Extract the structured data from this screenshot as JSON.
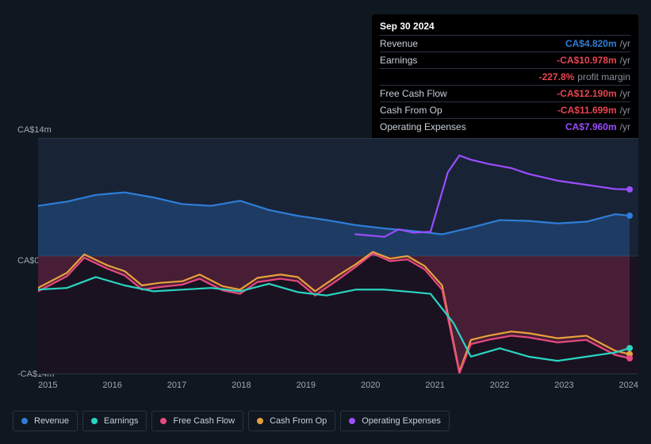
{
  "tooltip": {
    "date": "Sep 30 2024",
    "rows": [
      {
        "label": "Revenue",
        "value": "CA$4.820m",
        "unit": "/yr",
        "color": "#2e7dd7"
      },
      {
        "label": "Earnings",
        "value": "-CA$10.978m",
        "unit": "/yr",
        "color": "#e64552"
      },
      {
        "label": "",
        "value": "-227.8%",
        "unit": "profit margin",
        "color": "#e64552"
      },
      {
        "label": "Free Cash Flow",
        "value": "-CA$12.190m",
        "unit": "/yr",
        "color": "#e64552"
      },
      {
        "label": "Cash From Op",
        "value": "-CA$11.699m",
        "unit": "/yr",
        "color": "#e64552"
      },
      {
        "label": "Operating Expenses",
        "value": "CA$7.960m",
        "unit": "/yr",
        "color": "#9b4dff"
      }
    ]
  },
  "chart": {
    "type": "line",
    "ylim": [
      -14,
      14
    ],
    "ytick_labels": [
      "CA$14m",
      "CA$0",
      "-CA$14m"
    ],
    "x_labels": [
      "2015",
      "2016",
      "2017",
      "2018",
      "2019",
      "2020",
      "2021",
      "2022",
      "2023",
      "2024"
    ],
    "x_start_year": 2014.5,
    "x_end_year": 2024.9,
    "background_top": "#182336",
    "background_bottom": "#1a1220",
    "grid_color": "#2a3340",
    "line_width": 2.2,
    "end_dot_radius": 4,
    "series": [
      {
        "name": "Revenue",
        "color": "#2e7dd7",
        "fill": "rgba(46,125,215,0.28)",
        "fill_to": 0,
        "points": [
          [
            2014.5,
            6.0
          ],
          [
            2015.0,
            6.5
          ],
          [
            2015.5,
            7.3
          ],
          [
            2016.0,
            7.6
          ],
          [
            2016.5,
            7.0
          ],
          [
            2017.0,
            6.2
          ],
          [
            2017.5,
            6.0
          ],
          [
            2018.0,
            6.6
          ],
          [
            2018.5,
            5.5
          ],
          [
            2019.0,
            4.8
          ],
          [
            2019.5,
            4.3
          ],
          [
            2020.0,
            3.7
          ],
          [
            2020.5,
            3.3
          ],
          [
            2021.0,
            3.0
          ],
          [
            2021.5,
            2.6
          ],
          [
            2022.0,
            3.4
          ],
          [
            2022.5,
            4.3
          ],
          [
            2023.0,
            4.2
          ],
          [
            2023.5,
            3.9
          ],
          [
            2024.0,
            4.1
          ],
          [
            2024.5,
            5.0
          ],
          [
            2024.75,
            4.82
          ]
        ]
      },
      {
        "name": "Operating Expenses",
        "color": "#9b4dff",
        "points": [
          [
            2020.0,
            2.6
          ],
          [
            2020.5,
            2.3
          ],
          [
            2020.75,
            3.2
          ],
          [
            2021.0,
            2.8
          ],
          [
            2021.3,
            2.9
          ],
          [
            2021.6,
            10.0
          ],
          [
            2021.8,
            12.0
          ],
          [
            2022.0,
            11.5
          ],
          [
            2022.3,
            11.0
          ],
          [
            2022.7,
            10.5
          ],
          [
            2023.0,
            9.8
          ],
          [
            2023.5,
            9.0
          ],
          [
            2024.0,
            8.5
          ],
          [
            2024.5,
            8.0
          ],
          [
            2024.75,
            7.96
          ]
        ]
      },
      {
        "name": "Cash From Op",
        "color": "#e9a13b",
        "points": [
          [
            2014.5,
            -3.8
          ],
          [
            2015.0,
            -2.0
          ],
          [
            2015.3,
            0.2
          ],
          [
            2015.7,
            -1.1
          ],
          [
            2016.0,
            -1.8
          ],
          [
            2016.3,
            -3.5
          ],
          [
            2016.6,
            -3.2
          ],
          [
            2017.0,
            -3.0
          ],
          [
            2017.3,
            -2.2
          ],
          [
            2017.7,
            -3.6
          ],
          [
            2018.0,
            -4.0
          ],
          [
            2018.3,
            -2.6
          ],
          [
            2018.7,
            -2.2
          ],
          [
            2019.0,
            -2.5
          ],
          [
            2019.3,
            -4.2
          ],
          [
            2019.7,
            -2.3
          ],
          [
            2020.0,
            -1.0
          ],
          [
            2020.3,
            0.5
          ],
          [
            2020.6,
            -0.3
          ],
          [
            2020.9,
            0.0
          ],
          [
            2021.2,
            -1.2
          ],
          [
            2021.5,
            -3.5
          ],
          [
            2021.8,
            -13.8
          ],
          [
            2022.0,
            -10.0
          ],
          [
            2022.3,
            -9.5
          ],
          [
            2022.7,
            -9.0
          ],
          [
            2023.0,
            -9.2
          ],
          [
            2023.5,
            -9.8
          ],
          [
            2024.0,
            -9.5
          ],
          [
            2024.5,
            -11.3
          ],
          [
            2024.75,
            -11.7
          ]
        ]
      },
      {
        "name": "Free Cash Flow",
        "color": "#e64980",
        "fill": "rgba(230,73,128,0.22)",
        "fill_to": 0,
        "points": [
          [
            2014.5,
            -4.2
          ],
          [
            2015.0,
            -2.4
          ],
          [
            2015.3,
            -0.2
          ],
          [
            2015.7,
            -1.5
          ],
          [
            2016.0,
            -2.3
          ],
          [
            2016.3,
            -4.0
          ],
          [
            2016.6,
            -3.7
          ],
          [
            2017.0,
            -3.4
          ],
          [
            2017.3,
            -2.7
          ],
          [
            2017.7,
            -4.1
          ],
          [
            2018.0,
            -4.5
          ],
          [
            2018.3,
            -3.1
          ],
          [
            2018.7,
            -2.7
          ],
          [
            2019.0,
            -3.0
          ],
          [
            2019.3,
            -4.7
          ],
          [
            2019.7,
            -2.8
          ],
          [
            2020.0,
            -1.3
          ],
          [
            2020.3,
            0.3
          ],
          [
            2020.6,
            -0.6
          ],
          [
            2020.9,
            -0.4
          ],
          [
            2021.2,
            -1.6
          ],
          [
            2021.5,
            -4.0
          ],
          [
            2021.8,
            -14.0
          ],
          [
            2022.0,
            -10.5
          ],
          [
            2022.3,
            -10.0
          ],
          [
            2022.7,
            -9.5
          ],
          [
            2023.0,
            -9.7
          ],
          [
            2023.5,
            -10.3
          ],
          [
            2024.0,
            -10.0
          ],
          [
            2024.5,
            -11.8
          ],
          [
            2024.75,
            -12.19
          ]
        ]
      },
      {
        "name": "Earnings",
        "color": "#2ad4c1",
        "points": [
          [
            2014.5,
            -4.0
          ],
          [
            2015.0,
            -3.8
          ],
          [
            2015.5,
            -2.5
          ],
          [
            2016.0,
            -3.5
          ],
          [
            2016.5,
            -4.2
          ],
          [
            2017.0,
            -4.0
          ],
          [
            2017.5,
            -3.8
          ],
          [
            2018.0,
            -4.2
          ],
          [
            2018.5,
            -3.3
          ],
          [
            2019.0,
            -4.3
          ],
          [
            2019.5,
            -4.7
          ],
          [
            2020.0,
            -4.0
          ],
          [
            2020.5,
            -4.0
          ],
          [
            2021.0,
            -4.3
          ],
          [
            2021.3,
            -4.5
          ],
          [
            2021.7,
            -8.0
          ],
          [
            2022.0,
            -12.0
          ],
          [
            2022.5,
            -11.0
          ],
          [
            2023.0,
            -12.0
          ],
          [
            2023.5,
            -12.5
          ],
          [
            2024.0,
            -12.0
          ],
          [
            2024.5,
            -11.5
          ],
          [
            2024.75,
            -10.98
          ]
        ]
      }
    ]
  },
  "legend": [
    {
      "label": "Revenue",
      "color": "#2e7dd7"
    },
    {
      "label": "Earnings",
      "color": "#2ad4c1"
    },
    {
      "label": "Free Cash Flow",
      "color": "#e64980"
    },
    {
      "label": "Cash From Op",
      "color": "#e9a13b"
    },
    {
      "label": "Operating Expenses",
      "color": "#9b4dff"
    }
  ]
}
